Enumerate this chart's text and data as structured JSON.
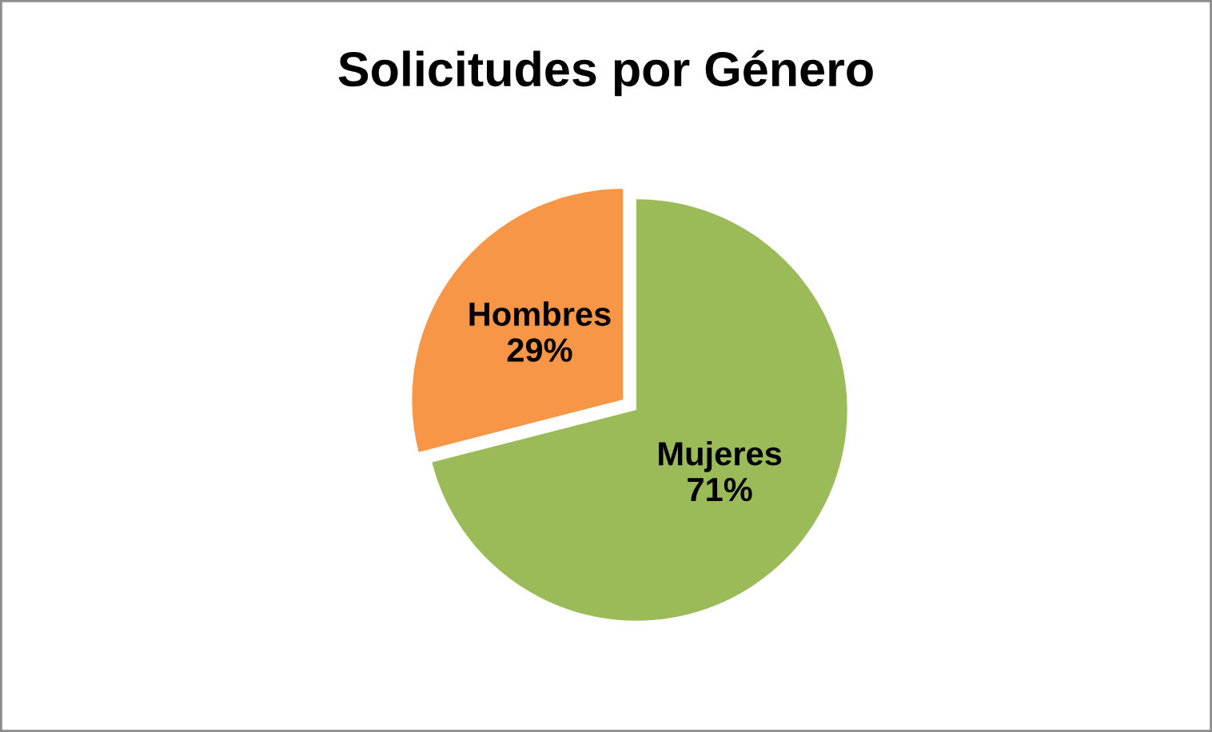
{
  "chart_data": {
    "type": "pie",
    "title": "Solicitudes por Género",
    "categories": [
      "Mujeres",
      "Hombres"
    ],
    "values": [
      71,
      29
    ],
    "value_labels": [
      "71%",
      "29%"
    ],
    "colors": [
      "#9bbb59",
      "#f79646"
    ],
    "legend": false
  }
}
